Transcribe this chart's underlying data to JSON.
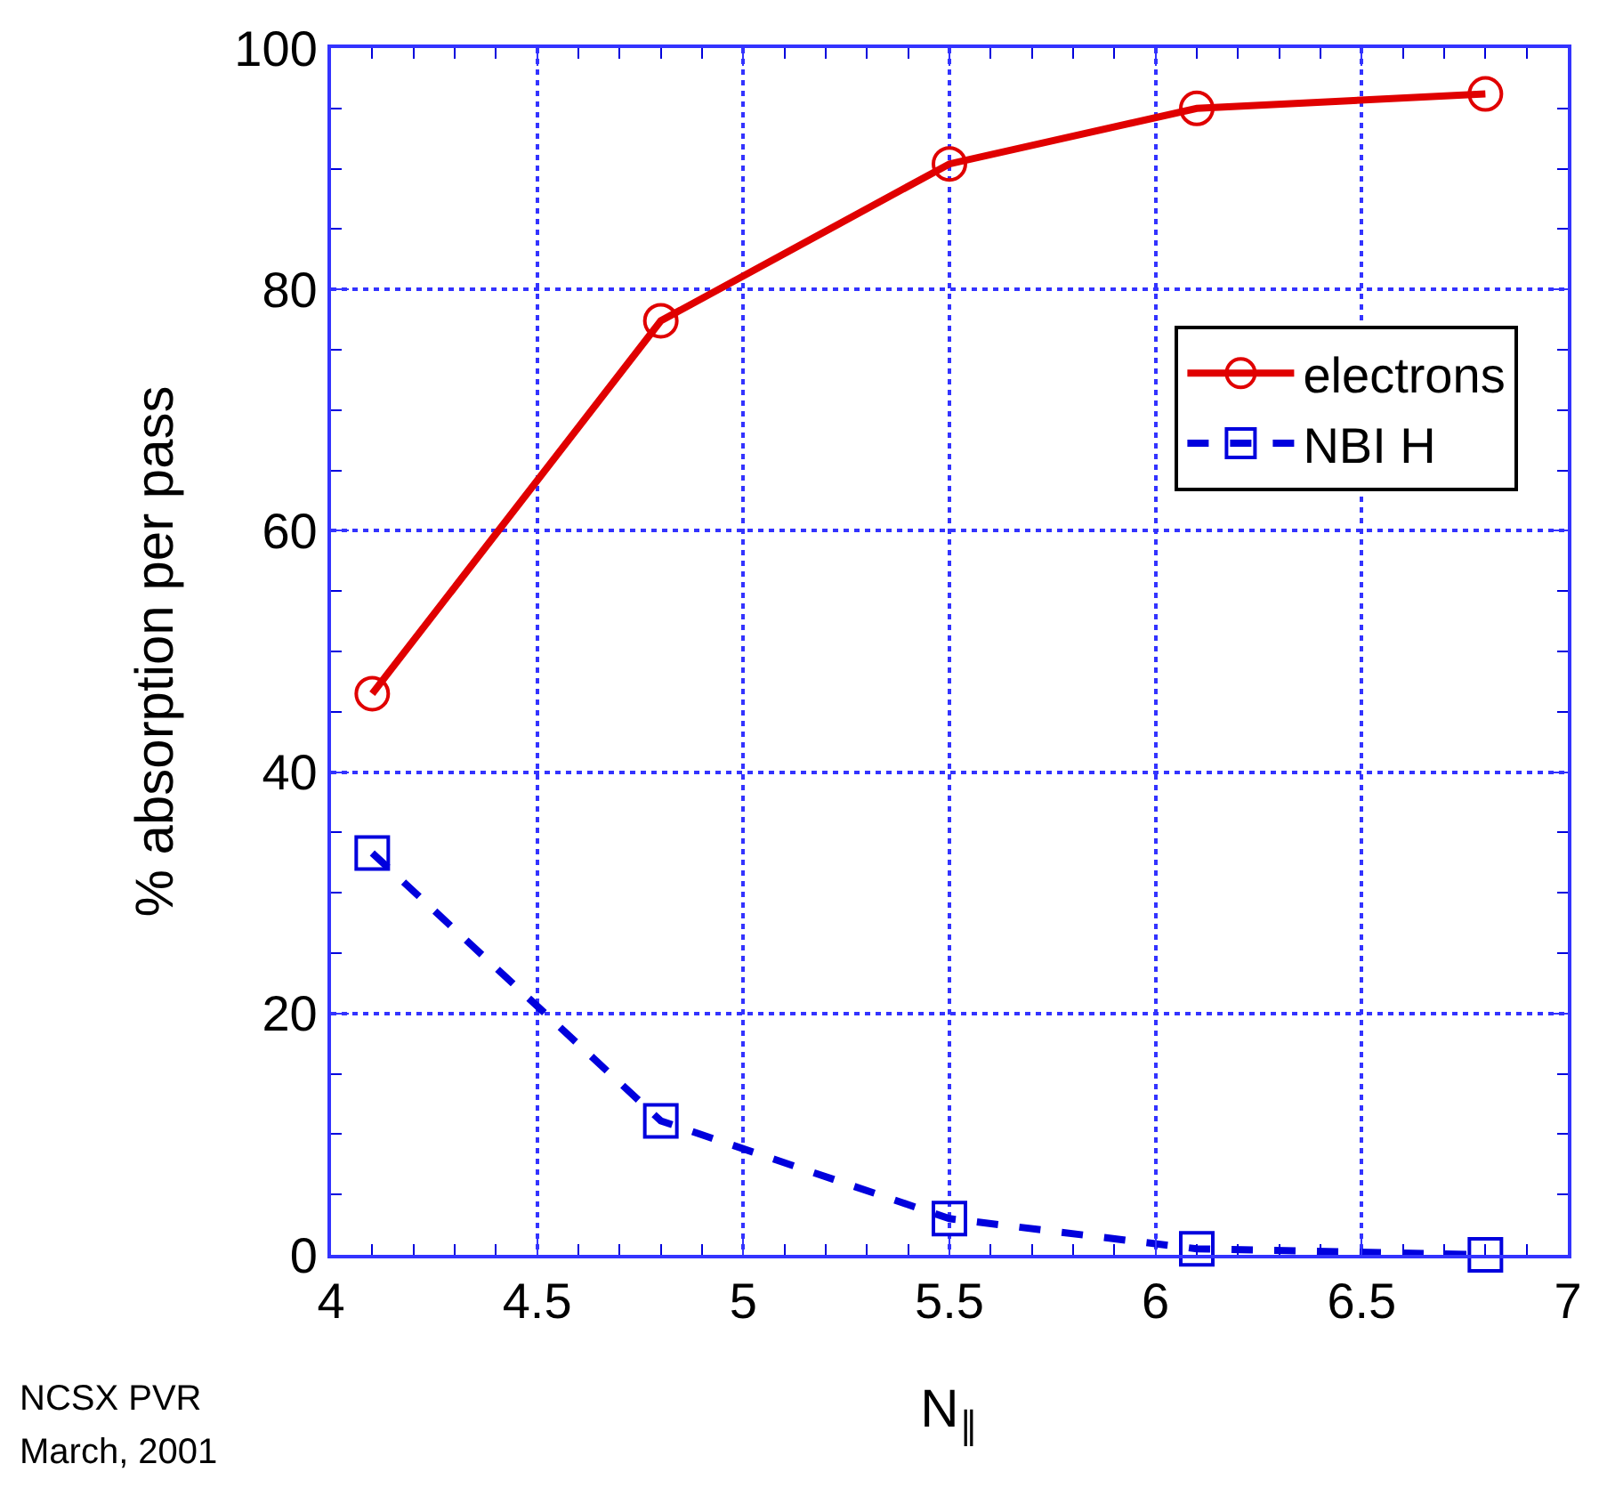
{
  "chart_data": {
    "type": "line",
    "xlabel": "N$_{∥}$",
    "ylabel": "% absorption per pass",
    "x": [
      4.1,
      4.8,
      5.5,
      6.1,
      6.8
    ],
    "series": [
      {
        "name": "electrons",
        "color": "#e00000",
        "values": [
          46.5,
          77.4,
          90.4,
          95,
          96.2
        ],
        "marker": "circle",
        "line_style": "solid"
      },
      {
        "name": "NBI H",
        "color": "#0000dd",
        "values": [
          33.3,
          11.1,
          3,
          0.5,
          0
        ],
        "marker": "square",
        "line_style": "dashed"
      }
    ],
    "xlim": [
      4,
      7
    ],
    "xticks": [
      4,
      4.5,
      5,
      5.5,
      6,
      6.5,
      7
    ],
    "ylim": [
      0,
      100
    ],
    "yticks": [
      0,
      20,
      40,
      60,
      80,
      100
    ],
    "grid": true,
    "legend": "top right",
    "annotations": [
      "NCSX PVR",
      "March, 2001"
    ]
  }
}
